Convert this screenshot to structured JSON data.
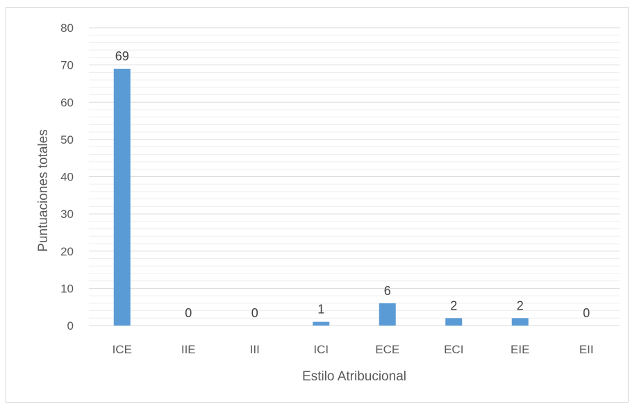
{
  "chart_data": {
    "type": "bar",
    "categories": [
      "ICE",
      "IIE",
      "III",
      "ICI",
      "ECE",
      "ECI",
      "EIE",
      "EII"
    ],
    "values": [
      69,
      0,
      0,
      1,
      6,
      2,
      2,
      0
    ],
    "data_labels": [
      "69",
      "0",
      "0",
      "1",
      "6",
      "2",
      "2",
      "0"
    ],
    "title": "",
    "xlabel": "Estilo Atribucional",
    "ylabel": "Puntuaciones totales",
    "ylim": [
      0,
      80
    ],
    "yticks": [
      "0",
      "10",
      "20",
      "30",
      "40",
      "50",
      "60",
      "70",
      "80"
    ],
    "grid": true,
    "minor_grid": true,
    "legend": "none",
    "bar_color": "#5b9bd5",
    "grid_color": "#d9d9d9",
    "minor_grid_color": "#ededed"
  }
}
